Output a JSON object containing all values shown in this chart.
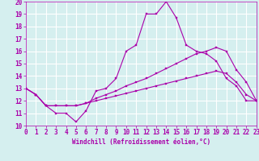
{
  "xlabel": "Windchill (Refroidissement éolien,°C)",
  "xlim": [
    0,
    23
  ],
  "ylim": [
    10,
    20
  ],
  "xticks": [
    0,
    1,
    2,
    3,
    4,
    5,
    6,
    7,
    8,
    9,
    10,
    11,
    12,
    13,
    14,
    15,
    16,
    17,
    18,
    19,
    20,
    21,
    22,
    23
  ],
  "yticks": [
    10,
    11,
    12,
    13,
    14,
    15,
    16,
    17,
    18,
    19,
    20
  ],
  "bg_color": "#d5efef",
  "grid_color": "#ffffff",
  "line_color": "#aa00aa",
  "line1_x": [
    0,
    1,
    2,
    3,
    4,
    5,
    6,
    7,
    8,
    9,
    10,
    11,
    12,
    13,
    14,
    15,
    16,
    17,
    18,
    19,
    20,
    21,
    22,
    23
  ],
  "line1_y": [
    13.0,
    12.5,
    11.6,
    11.0,
    11.0,
    10.3,
    11.2,
    12.8,
    13.0,
    13.8,
    16.0,
    16.5,
    19.0,
    19.0,
    20.0,
    18.7,
    16.5,
    16.0,
    15.8,
    15.2,
    13.8,
    13.2,
    12.0,
    12.0
  ],
  "line2_x": [
    0,
    1,
    2,
    3,
    4,
    5,
    6,
    7,
    8,
    9,
    10,
    11,
    12,
    13,
    14,
    15,
    16,
    17,
    18,
    19,
    20,
    21,
    22,
    23
  ],
  "line2_y": [
    13.0,
    12.5,
    11.6,
    11.6,
    11.6,
    11.6,
    11.8,
    12.2,
    12.5,
    12.8,
    13.2,
    13.5,
    13.8,
    14.2,
    14.6,
    15.0,
    15.4,
    15.8,
    16.0,
    16.3,
    16.0,
    14.5,
    13.5,
    12.0
  ],
  "line3_x": [
    0,
    1,
    2,
    3,
    4,
    5,
    6,
    7,
    8,
    9,
    10,
    11,
    12,
    13,
    14,
    15,
    16,
    17,
    18,
    19,
    20,
    21,
    22,
    23
  ],
  "line3_y": [
    13.0,
    12.5,
    11.6,
    11.6,
    11.6,
    11.6,
    11.8,
    12.0,
    12.2,
    12.4,
    12.6,
    12.8,
    13.0,
    13.2,
    13.4,
    13.6,
    13.8,
    14.0,
    14.2,
    14.4,
    14.2,
    13.5,
    12.5,
    12.0
  ],
  "tick_fontsize": 5.5,
  "xlabel_fontsize": 5.5
}
